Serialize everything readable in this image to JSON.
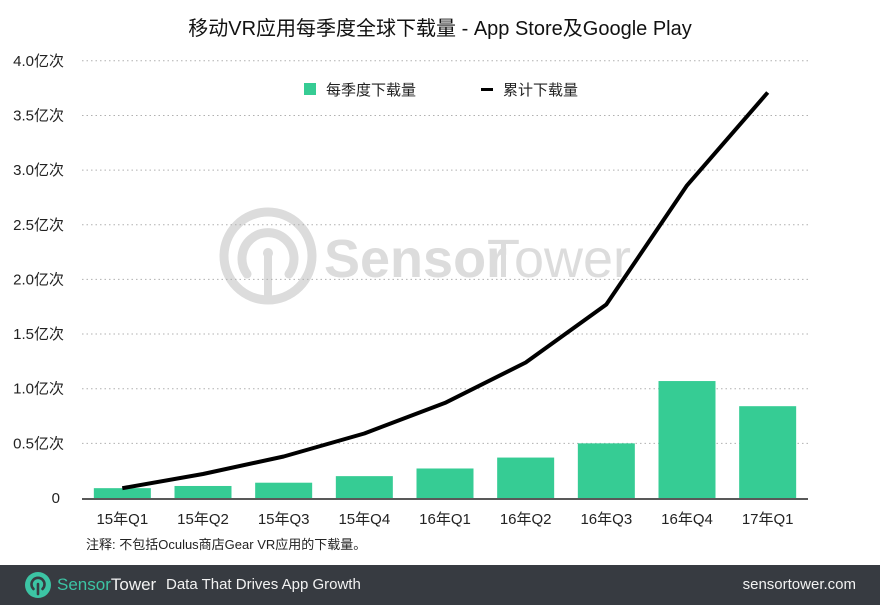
{
  "title": "移动VR应用每季度全球下载量 - App Store及Google Play",
  "legend": {
    "bar_label": "每季度下载量",
    "line_label": "累计下载量"
  },
  "note": "注释: 不包括Oculus商店Gear VR应用的下载量。",
  "watermark": {
    "sensor": "Sensor",
    "tower": "Tower"
  },
  "footer": {
    "brand_sensor": "Sensor",
    "brand_tower": "Tower",
    "tagline": "Data That Drives App Growth",
    "site": "sensortower.com"
  },
  "colors": {
    "bar": "#36cc94",
    "line": "#000000",
    "footer_bg": "#373b41",
    "brand_accent": "#3cc4a4",
    "watermark": "#d9d9d9",
    "grid": "#b0b0b0"
  },
  "chart_data": {
    "type": "bar",
    "title": "移动VR应用每季度全球下载量 - App Store及Google Play",
    "xlabel": "",
    "ylabel": "",
    "ylim": [
      0,
      4.0
    ],
    "yticks": [
      0,
      0.5,
      1.0,
      1.5,
      2.0,
      2.5,
      3.0,
      3.5,
      4.0
    ],
    "ytick_labels": [
      "0",
      "0.5亿次",
      "1.0亿次",
      "1.5亿次",
      "2.0亿次",
      "2.5亿次",
      "3.0亿次",
      "3.5亿次",
      "4.0亿次"
    ],
    "grid": true,
    "legend_position": "top",
    "categories": [
      "15年Q1",
      "15年Q2",
      "15年Q3",
      "15年Q4",
      "16年Q1",
      "16年Q2",
      "16年Q3",
      "16年Q4",
      "17年Q1"
    ],
    "series": [
      {
        "name": "每季度下载量",
        "type": "bar",
        "unit": "亿次",
        "values": [
          0.09,
          0.11,
          0.14,
          0.2,
          0.27,
          0.37,
          0.5,
          1.07,
          0.84
        ]
      },
      {
        "name": "累计下载量",
        "type": "line",
        "unit": "亿次",
        "values": [
          0.09,
          0.22,
          0.38,
          0.59,
          0.87,
          1.24,
          1.77,
          2.86,
          3.71
        ]
      }
    ],
    "annotations": [
      "注释: 不包括Oculus商店Gear VR应用的下载量。"
    ]
  }
}
